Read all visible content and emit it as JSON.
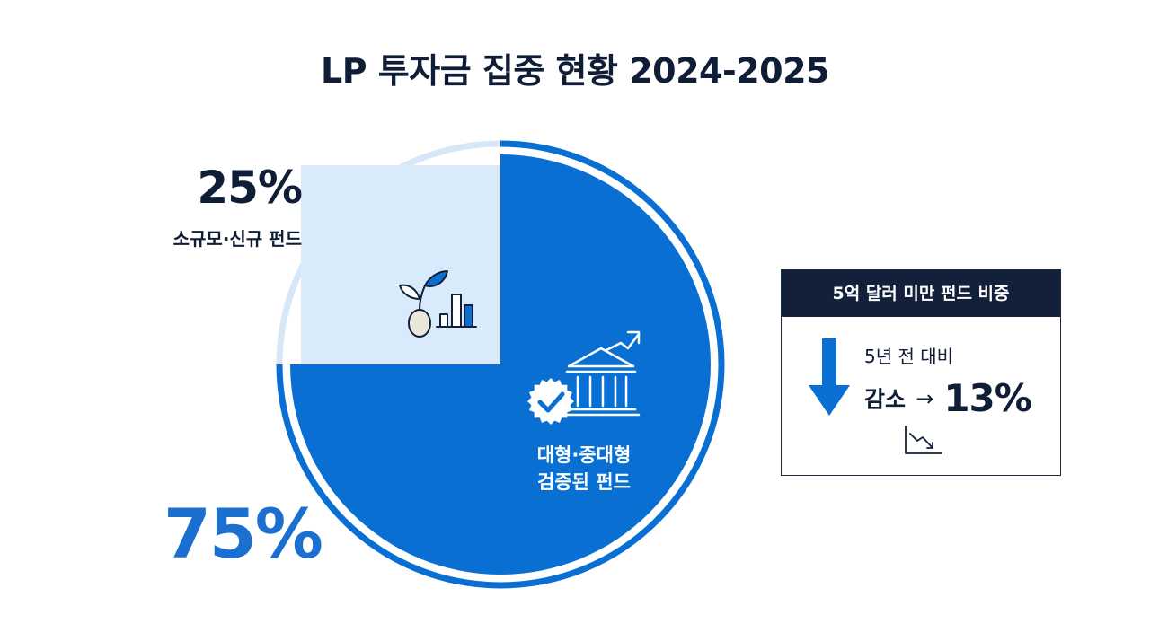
{
  "title": "LP 투자금 집중 현황 2024-2025",
  "chart_data": {
    "type": "pie",
    "title": "LP 투자금 집중 현황 2024-2025",
    "slices": [
      {
        "label_lines": [
          "대형·중대형",
          "검증된 펀드"
        ],
        "value": 75,
        "display": "75%",
        "color": "#0a6fd3"
      },
      {
        "label_lines": [
          "소규모·신규 펀드"
        ],
        "value": 25,
        "display": "25%",
        "color": "#d9ebfa"
      }
    ]
  },
  "infobox": {
    "title": "5억 달러 미만 펀드 비중",
    "comparison": "5년 전 대비",
    "change_label": "감소",
    "arrow_text": "→",
    "change_value": "13%"
  },
  "icons": {
    "small": "sprout-chart-icon",
    "large": "bank-growth-icon",
    "badge": "check-badge-icon",
    "down": "down-arrow-icon",
    "trend": "trend-down-icon"
  },
  "colors": {
    "primary": "#0a6fd3",
    "light": "#d9ebfa",
    "dark": "#12203a"
  }
}
